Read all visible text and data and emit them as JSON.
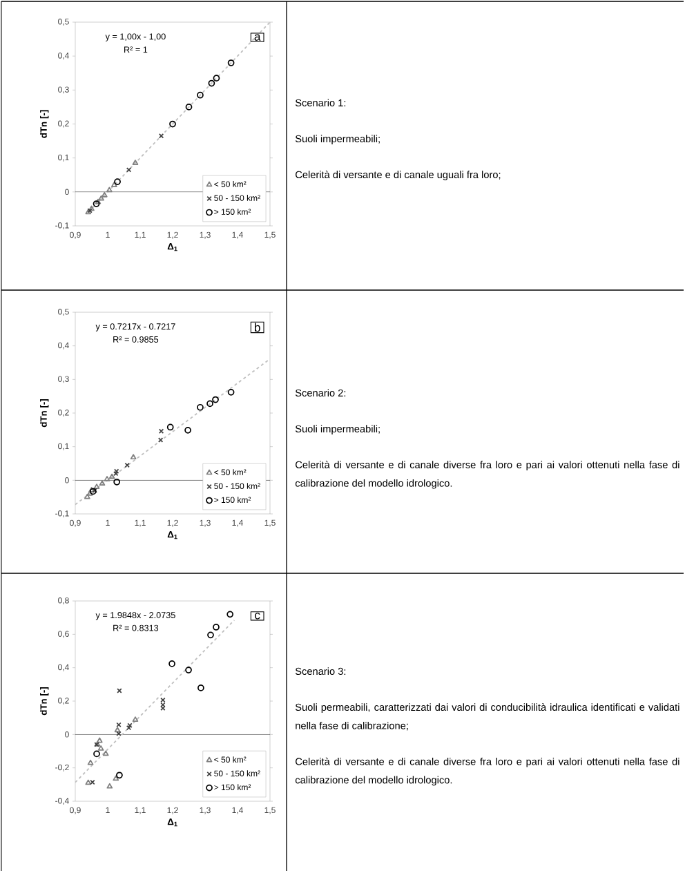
{
  "chart_data": [
    {
      "type": "scatter",
      "xlabel": "Δ$_{1}$",
      "ylabel": "dTn [-]",
      "xlim": [
        0.9,
        1.5
      ],
      "ylim": [
        -0.1,
        0.5
      ],
      "xticks": [
        {
          "value": 0.9,
          "label": "0,9"
        },
        1,
        {
          "value": 1.1,
          "label": "1,1"
        },
        {
          "value": 1.2,
          "label": "1,2"
        },
        {
          "value": 1.3,
          "label": "1,3"
        },
        {
          "value": 1.4,
          "label": "1,4"
        },
        {
          "value": 1.5,
          "label": "1,5"
        }
      ],
      "yticks": [
        {
          "value": -0.1,
          "label": "-0,1"
        },
        0,
        {
          "value": 0.1,
          "label": "0,1"
        },
        {
          "value": 0.2,
          "label": "0,2"
        },
        {
          "value": 0.3,
          "label": "0,3"
        },
        {
          "value": 0.4,
          "label": "0,4"
        },
        {
          "value": 0.5,
          "label": "0,5"
        }
      ],
      "legend": "bottom right",
      "ref_lines": [
        {
          "axis": "y",
          "value": 0,
          "color": "#000000"
        }
      ],
      "series": [
        {
          "type": "line",
          "color": "#c0c0c0",
          "line_style": "dashed",
          "marker": "none",
          "x": [
            0.94,
            1.5
          ],
          "values": [
            -0.06,
            0.5
          ]
        },
        {
          "name": "< 50 km²",
          "color": "#808080",
          "marker": "triangle",
          "x": [
            1.085,
            1.02,
            1.005,
            0.99,
            0.98,
            0.97,
            0.95,
            0.94
          ],
          "values": [
            0.085,
            0.02,
            0.005,
            -0.01,
            -0.02,
            -0.03,
            -0.05,
            -0.06
          ]
        },
        {
          "name": "50 - 150 km²",
          "color": "#404040",
          "marker": "cross",
          "x": [
            1.165,
            1.065,
            0.945
          ],
          "values": [
            0.165,
            0.065,
            -0.055
          ]
        },
        {
          "name": "> 150 km²",
          "color": "#000000",
          "marker": "circle",
          "x": [
            1.38,
            1.335,
            1.32,
            1.285,
            1.25,
            1.2,
            1.03,
            0.965
          ],
          "values": [
            0.38,
            0.335,
            0.32,
            0.285,
            0.25,
            0.2,
            0.03,
            -0.035
          ]
        }
      ],
      "annotations": [
        "y = 1,00x - 1,00",
        "R² = 1",
        "a",
        "Scenario 1:",
        "Suoli impermeabili;",
        "Celerità di versante e di canale uguali fra loro;"
      ]
    },
    {
      "type": "scatter",
      "xlabel": "Δ$_{1}$",
      "ylabel": "dTn [-]",
      "xlim": [
        0.9,
        1.5
      ],
      "ylim": [
        -0.1,
        0.5
      ],
      "xticks": [
        {
          "value": 0.9,
          "label": "0,9"
        },
        1,
        {
          "value": 1.1,
          "label": "1,1"
        },
        {
          "value": 1.2,
          "label": "1,2"
        },
        {
          "value": 1.3,
          "label": "1,3"
        },
        {
          "value": 1.4,
          "label": "1,4"
        },
        {
          "value": 1.5,
          "label": "1,5"
        }
      ],
      "yticks": [
        {
          "value": -0.1,
          "label": "-0,1"
        },
        0,
        {
          "value": 0.1,
          "label": "0,1"
        },
        {
          "value": 0.2,
          "label": "0,2"
        },
        {
          "value": 0.3,
          "label": "0,3"
        },
        {
          "value": 0.4,
          "label": "0,4"
        },
        {
          "value": 0.5,
          "label": "0,5"
        }
      ],
      "legend": "bottom right",
      "ref_lines": [
        {
          "axis": "y",
          "value": 0,
          "color": "#000000"
        }
      ],
      "series": [
        {
          "type": "line",
          "color": "#c0c0c0",
          "line_style": "dashed",
          "marker": "none",
          "x": [
            0.9,
            1.5
          ],
          "values": [
            -0.072,
            0.361
          ]
        },
        {
          "name": "< 50 km²",
          "color": "#808080",
          "marker": "triangle",
          "x": [
            1.079,
            1.013,
            0.998,
            0.983,
            0.966,
            0.95,
            0.945,
            0.937
          ],
          "values": [
            0.068,
            0.01,
            0.003,
            -0.01,
            -0.02,
            -0.03,
            -0.04,
            -0.05
          ]
        },
        {
          "name": "50 - 150 km²",
          "color": "#404040",
          "marker": "cross",
          "x": [
            1.165,
            1.163,
            1.06,
            1.027,
            1.025,
            0.96
          ],
          "values": [
            0.146,
            0.12,
            0.045,
            0.027,
            0.02,
            -0.03
          ]
        },
        {
          "name": "> 150 km²",
          "color": "#000000",
          "marker": "circle",
          "x": [
            1.38,
            1.332,
            1.315,
            1.285,
            1.247,
            1.193,
            1.028,
            0.955
          ],
          "values": [
            0.262,
            0.24,
            0.228,
            0.217,
            0.149,
            0.158,
            -0.005,
            -0.033
          ]
        }
      ],
      "annotations": [
        "y = 0.7217x - 0.7217",
        "R² = 0.9855",
        "b",
        "Scenario 2:",
        "Suoli impermeabili;",
        "Celerità di versante e di canale diverse fra loro e pari ai valori ottenuti nella fase di calibrazione del modello idrologico."
      ]
    },
    {
      "type": "scatter",
      "xlabel": "Δ$_{1}$",
      "ylabel": "dTn [-]",
      "xlim": [
        0.9,
        1.5
      ],
      "ylim": [
        -0.4,
        0.8
      ],
      "xticks": [
        {
          "value": 0.9,
          "label": "0,9"
        },
        1,
        {
          "value": 1.1,
          "label": "1,1"
        },
        {
          "value": 1.2,
          "label": "1,2"
        },
        {
          "value": 1.3,
          "label": "1,3"
        },
        {
          "value": 1.4,
          "label": "1,4"
        },
        {
          "value": 1.5,
          "label": "1,5"
        }
      ],
      "yticks": [
        {
          "value": -0.4,
          "label": "-0,4"
        },
        {
          "value": -0.2,
          "label": "-0,2"
        },
        0,
        {
          "value": 0.2,
          "label": "0,2"
        },
        {
          "value": 0.4,
          "label": "0,4"
        },
        {
          "value": 0.6,
          "label": "0,6"
        },
        {
          "value": 0.8,
          "label": "0,8"
        }
      ],
      "legend": "bottom right",
      "ref_lines": [
        {
          "axis": "y",
          "value": 0,
          "color": "#000000"
        }
      ],
      "series": [
        {
          "type": "line",
          "color": "#c0c0c0",
          "line_style": "dashed",
          "marker": "none",
          "x": [
            0.9,
            1.39
          ],
          "values": [
            -0.287,
            0.685
          ]
        },
        {
          "name": "< 50 km²",
          "color": "#808080",
          "marker": "triangle",
          "x": [
            1.085,
            1.03,
            0.975,
            0.968,
            0.979,
            0.994,
            0.947,
            0.94,
            1.006,
            1.025
          ],
          "values": [
            0.088,
            0.025,
            -0.038,
            -0.06,
            -0.085,
            -0.116,
            -0.171,
            -0.29,
            -0.312,
            -0.265
          ]
        },
        {
          "name": "50 - 150 km²",
          "color": "#404040",
          "marker": "cross",
          "x": [
            1.036,
            1.17,
            1.17,
            1.17,
            1.068,
            1.065,
            1.034,
            1.034,
            0.953,
            0.966
          ],
          "values": [
            0.262,
            0.206,
            0.178,
            0.157,
            0.054,
            0.04,
            0.058,
            0.005,
            -0.286,
            -0.06
          ]
        },
        {
          "name": "> 150 km²",
          "color": "#000000",
          "marker": "circle",
          "x": [
            1.377,
            1.334,
            1.317,
            1.198,
            1.249,
            1.287,
            1.036,
            0.966
          ],
          "values": [
            0.72,
            0.643,
            0.596,
            0.424,
            0.386,
            0.279,
            -0.244,
            -0.116
          ]
        }
      ],
      "annotations": [
        "y = 1.9848x - 2.0735",
        "R² = 0.8313",
        "c",
        "Scenario 3:",
        "Suoli permeabili, caratterizzati dai valori di conducibilità idraulica identificati e validati nella fase di calibrazione;",
        "Celerità di versante e di canale diverse fra loro e pari ai valori ottenuti nella fase di calibrazione del modello idrologico."
      ]
    }
  ]
}
